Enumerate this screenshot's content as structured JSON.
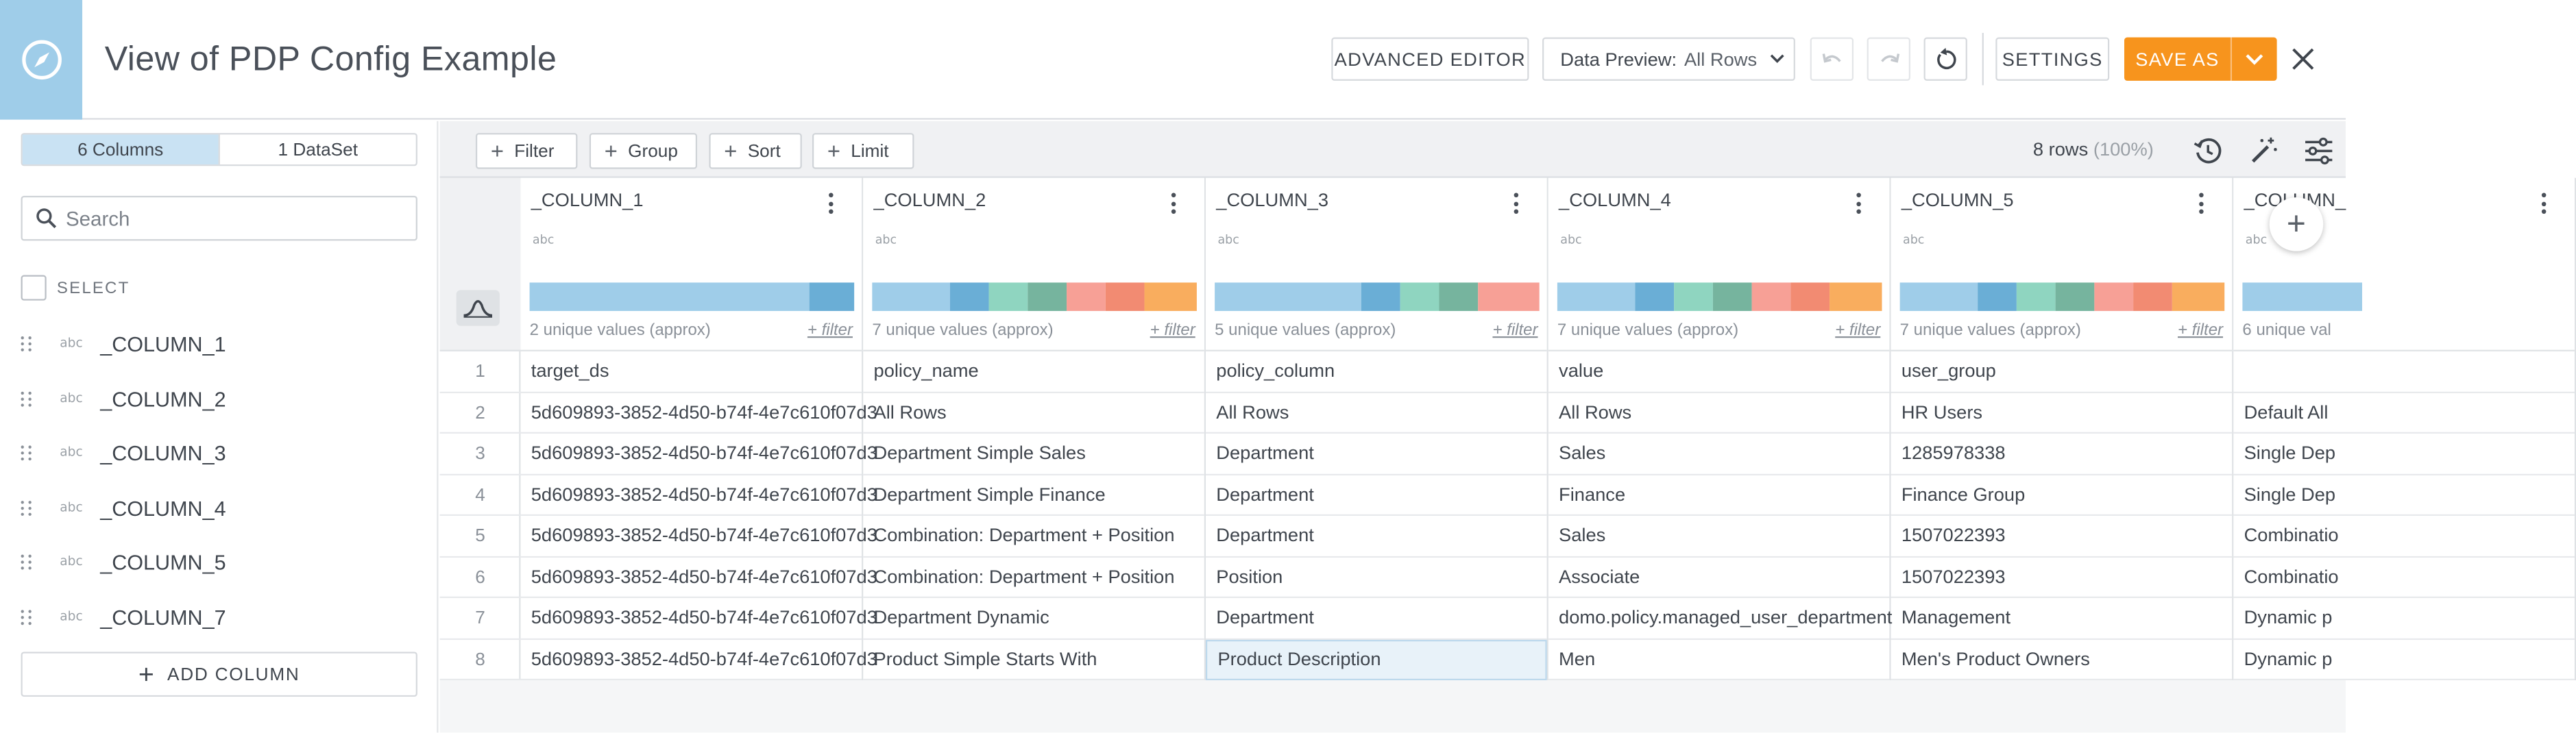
{
  "header": {
    "title": "View of PDP Config Example",
    "advanced_editor": "ADVANCED EDITOR",
    "data_preview_label": "Data Preview:",
    "data_preview_value": "All Rows",
    "settings": "SETTINGS",
    "save_as": "SAVE AS"
  },
  "left_panel": {
    "tab_columns": "6 Columns",
    "tab_dataset": "1 DataSet",
    "search_placeholder": "Search",
    "select_label": "SELECT",
    "columns": [
      {
        "type": "abc",
        "name": "_COLUMN_1"
      },
      {
        "type": "abc",
        "name": "_COLUMN_2"
      },
      {
        "type": "abc",
        "name": "_COLUMN_3"
      },
      {
        "type": "abc",
        "name": "_COLUMN_4"
      },
      {
        "type": "abc",
        "name": "_COLUMN_5"
      },
      {
        "type": "abc",
        "name": "_COLUMN_7"
      }
    ],
    "add_column": "ADD COLUMN"
  },
  "toolbar": {
    "filter": "Filter",
    "group": "Group",
    "sort": "Sort",
    "limit": "Limit",
    "rows_count": "8 rows",
    "rows_pct": "(100%)"
  },
  "grid": {
    "plus_filter": "+ filter",
    "columns": [
      {
        "name": "_COLUMN_1",
        "type": "abc",
        "unique": "2 unique values (approx)"
      },
      {
        "name": "_COLUMN_2",
        "type": "abc",
        "unique": "7 unique values (approx)"
      },
      {
        "name": "_COLUMN_3",
        "type": "abc",
        "unique": "5 unique values (approx)"
      },
      {
        "name": "_COLUMN_4",
        "type": "abc",
        "unique": "7 unique values (approx)"
      },
      {
        "name": "_COLUMN_5",
        "type": "abc",
        "unique": "7 unique values (approx)"
      },
      {
        "name": "_COLUMN_",
        "type": "abc",
        "unique": "6 unique val"
      }
    ],
    "row_numbers": [
      "1",
      "2",
      "3",
      "4",
      "5",
      "6",
      "7",
      "8"
    ],
    "rows": [
      [
        "target_ds",
        "policy_name",
        "policy_column",
        "value",
        "user_group",
        ""
      ],
      [
        "5d609893-3852-4d50-b74f-4e7c610f07d3",
        "All Rows",
        "All Rows",
        "All Rows",
        "HR Users",
        "Default All"
      ],
      [
        "5d609893-3852-4d50-b74f-4e7c610f07d3",
        "Department Simple Sales",
        "Department",
        "Sales",
        "1285978338",
        "Single Dep"
      ],
      [
        "5d609893-3852-4d50-b74f-4e7c610f07d3",
        "Department Simple Finance",
        "Department",
        "Finance",
        "Finance Group",
        "Single Dep"
      ],
      [
        "5d609893-3852-4d50-b74f-4e7c610f07d3",
        "Combination: Department + Position",
        "Department",
        "Sales",
        "1507022393",
        "Combinatio"
      ],
      [
        "5d609893-3852-4d50-b74f-4e7c610f07d3",
        "Combination: Department + Position",
        "Position",
        "Associate",
        "1507022393",
        "Combinatio"
      ],
      [
        "5d609893-3852-4d50-b74f-4e7c610f07d3",
        "Department Dynamic",
        "Department",
        "domo.policy.managed_user_department",
        "Management",
        "Dynamic p"
      ],
      [
        "5d609893-3852-4d50-b74f-4e7c610f07d3",
        "Product Simple Starts With",
        "Product Description",
        "Men",
        "Men's Product Owners",
        "Dynamic p"
      ]
    ]
  }
}
